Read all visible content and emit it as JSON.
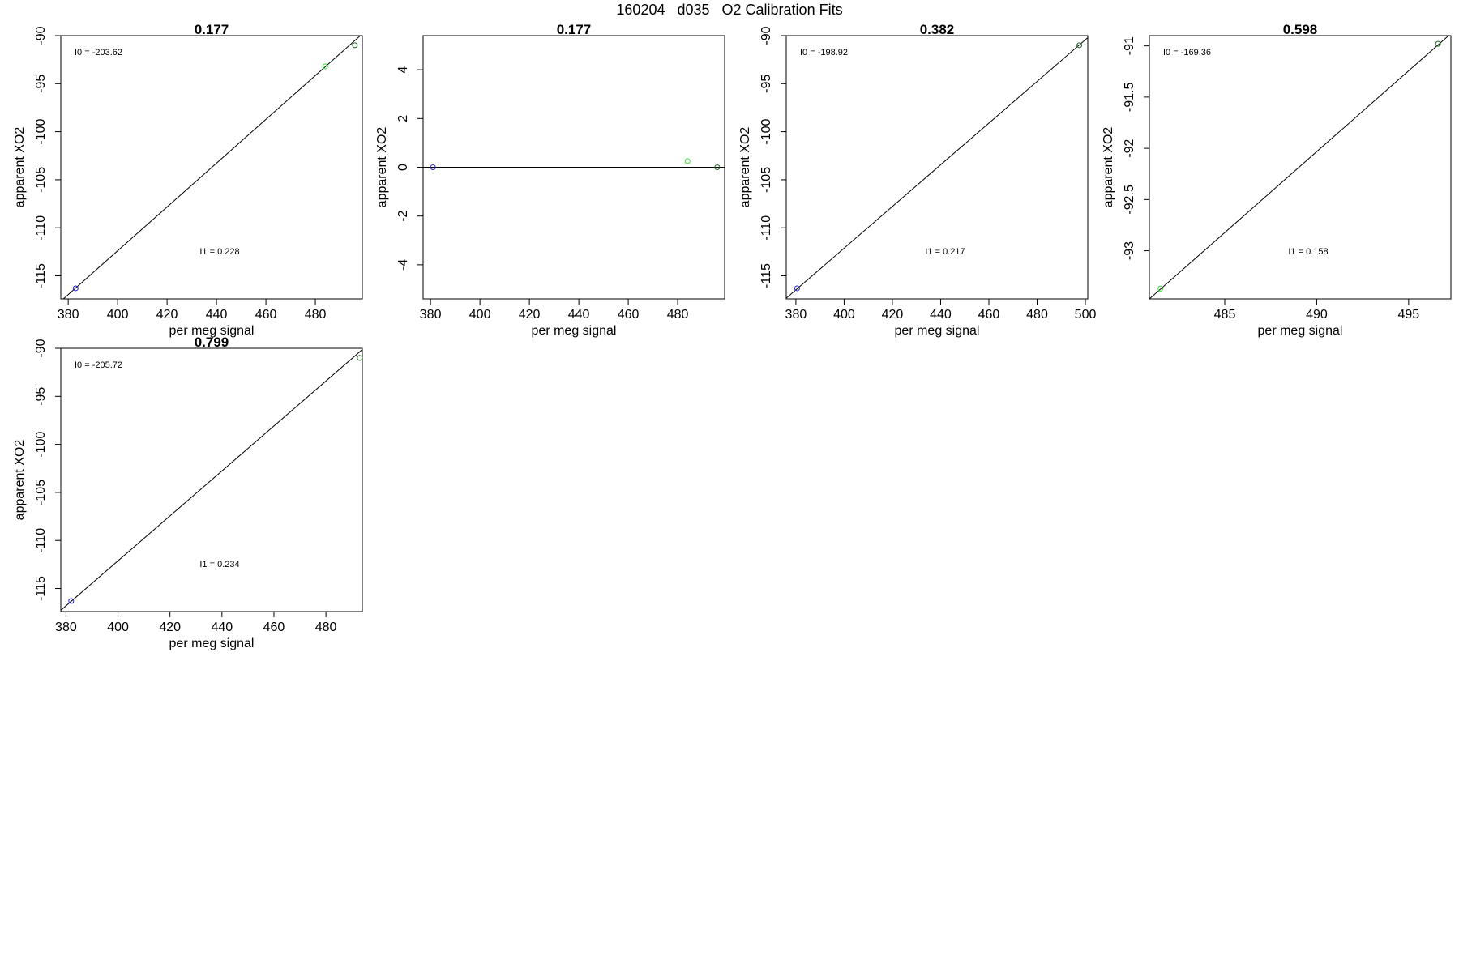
{
  "figure": {
    "title": "160204   d035   O2 Calibration Fits"
  },
  "chart_data": [
    {
      "type": "scatter",
      "title": "0.177",
      "xlabel": "per meg signal",
      "ylabel": "apparent XO2",
      "xlim": [
        377,
        499
      ],
      "ylim": [
        -117.4,
        -90.0
      ],
      "xticks": [
        380,
        400,
        420,
        440,
        460,
        480
      ],
      "yticks": [
        -115,
        -110,
        -105,
        -100,
        -95,
        -90
      ],
      "points": [
        {
          "x": 383,
          "y": -116.3,
          "color": "#2222cc"
        },
        {
          "x": 484,
          "y": -93.2,
          "color": "#33dd33"
        },
        {
          "x": 496,
          "y": -91.0,
          "color": "#226622"
        }
      ],
      "fit_line": {
        "x": [
          377,
          499
        ],
        "y": [
          -117.64,
          -89.82
        ]
      },
      "l0_label": "I0 =  -203.62",
      "l1_label": "I1 =  0.228"
    },
    {
      "type": "scatter",
      "title": "0.177",
      "xlabel": "per meg signal",
      "ylabel": "apparent XO2",
      "xlim": [
        377,
        499
      ],
      "ylim": [
        -5.4,
        5.4
      ],
      "xticks": [
        380,
        400,
        420,
        440,
        460,
        480
      ],
      "yticks": [
        -4,
        -2,
        0,
        2,
        4
      ],
      "points": [
        {
          "x": 381,
          "y": 0.0,
          "color": "#2222cc"
        },
        {
          "x": 484,
          "y": 0.25,
          "color": "#33dd33"
        },
        {
          "x": 496,
          "y": 0.0,
          "color": "#226622"
        }
      ],
      "fit_line": {
        "x": [
          377,
          499
        ],
        "y": [
          0,
          0
        ]
      },
      "l0_label": "",
      "l1_label": ""
    },
    {
      "type": "scatter",
      "title": "0.382",
      "xlabel": "per meg signal",
      "ylabel": "apparent XO2",
      "xlim": [
        376,
        501
      ],
      "ylim": [
        -117.4,
        -90.0
      ],
      "xticks": [
        380,
        400,
        420,
        440,
        460,
        480,
        500
      ],
      "yticks": [
        -115,
        -110,
        -105,
        -100,
        -95,
        -90
      ],
      "points": [
        {
          "x": 380.5,
          "y": -116.3,
          "color": "#2222cc"
        },
        {
          "x": 497.5,
          "y": -91.0,
          "color": "#226622"
        }
      ],
      "fit_line": {
        "x": [
          376,
          501
        ],
        "y": [
          -117.33,
          -90.21
        ]
      },
      "l0_label": "I0 =  -198.92",
      "l1_label": "I1 =  0.217"
    },
    {
      "type": "scatter",
      "title": "0.598",
      "xlabel": "per meg signal",
      "ylabel": "apparent XO2",
      "xlim": [
        480.9,
        497.3
      ],
      "ylim": [
        -93.47,
        -90.9
      ],
      "xticks": [
        485,
        490,
        495
      ],
      "yticks": [
        -93.0,
        -92.5,
        -92.0,
        -91.5,
        -91.0
      ],
      "points": [
        {
          "x": 481.5,
          "y": -93.37,
          "color": "#33dd33"
        },
        {
          "x": 496.6,
          "y": -90.98,
          "color": "#226622"
        }
      ],
      "fit_line": {
        "x": [
          480.9,
          497.3
        ],
        "y": [
          -93.47,
          -90.88
        ]
      },
      "l0_label": "I0 =  -169.36",
      "l1_label": "I1 =  0.158"
    },
    {
      "type": "scatter",
      "title": "0.799",
      "xlabel": "per meg signal",
      "ylabel": "apparent XO2",
      "xlim": [
        378,
        494
      ],
      "ylim": [
        -117.4,
        -90.0
      ],
      "xticks": [
        380,
        400,
        420,
        440,
        460,
        480
      ],
      "yticks": [
        -115,
        -110,
        -105,
        -100,
        -95,
        -90
      ],
      "points": [
        {
          "x": 382,
          "y": -116.3,
          "color": "#2222cc"
        },
        {
          "x": 493,
          "y": -91.0,
          "color": "#226622"
        }
      ],
      "fit_line": {
        "x": [
          378,
          494
        ],
        "y": [
          -117.27,
          -90.13
        ]
      },
      "l0_label": "I0 =  -205.72",
      "l1_label": "I1 =  0.234"
    }
  ]
}
